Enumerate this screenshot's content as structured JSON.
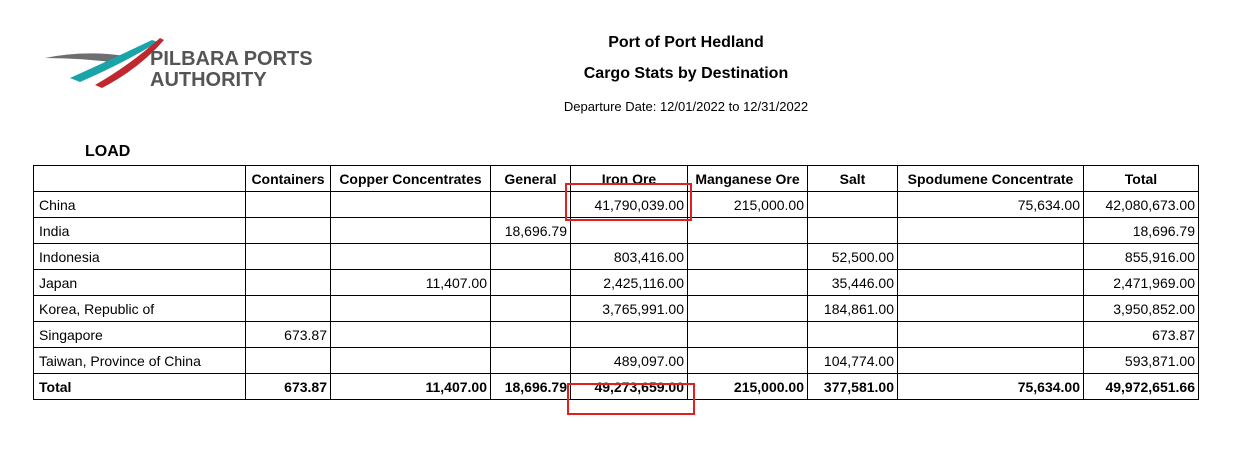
{
  "logo": {
    "line1": "PILBARA PORTS",
    "line2": "AUTHORITY"
  },
  "header": {
    "title": "Port of Port Hedland",
    "subtitle": "Cargo Stats by Destination",
    "date_range": "Departure Date: 12/01/2022 to 12/31/2022"
  },
  "section": "LOAD",
  "table": {
    "columns": [
      null,
      "Containers",
      "Copper Concentrates",
      "General",
      "Iron Ore",
      "Manganese Ore",
      "Salt",
      "Spodumene Concentrate",
      "Total"
    ],
    "rows": [
      [
        "China",
        null,
        null,
        null,
        "41,790,039.00",
        "215,000.00",
        null,
        "75,634.00",
        "42,080,673.00"
      ],
      [
        "India",
        null,
        null,
        "18,696.79",
        null,
        null,
        null,
        null,
        "18,696.79"
      ],
      [
        "Indonesia",
        null,
        null,
        null,
        "803,416.00",
        null,
        "52,500.00",
        null,
        "855,916.00"
      ],
      [
        "Japan",
        null,
        "11,407.00",
        null,
        "2,425,116.00",
        null,
        "35,446.00",
        null,
        "2,471,969.00"
      ],
      [
        "Korea, Republic of",
        null,
        null,
        null,
        "3,765,991.00",
        null,
        "184,861.00",
        null,
        "3,950,852.00"
      ],
      [
        "Singapore",
        "673.87",
        null,
        null,
        null,
        null,
        null,
        null,
        "673.87"
      ],
      [
        "Taiwan, Province of China",
        null,
        null,
        null,
        "489,097.00",
        null,
        "104,774.00",
        null,
        "593,871.00"
      ]
    ],
    "total_row": [
      "Total",
      "673.87",
      "11,407.00",
      "18,696.79",
      "49,273,659.00",
      "215,000.00",
      "377,581.00",
      "75,634.00",
      "49,972,651.66"
    ]
  }
}
